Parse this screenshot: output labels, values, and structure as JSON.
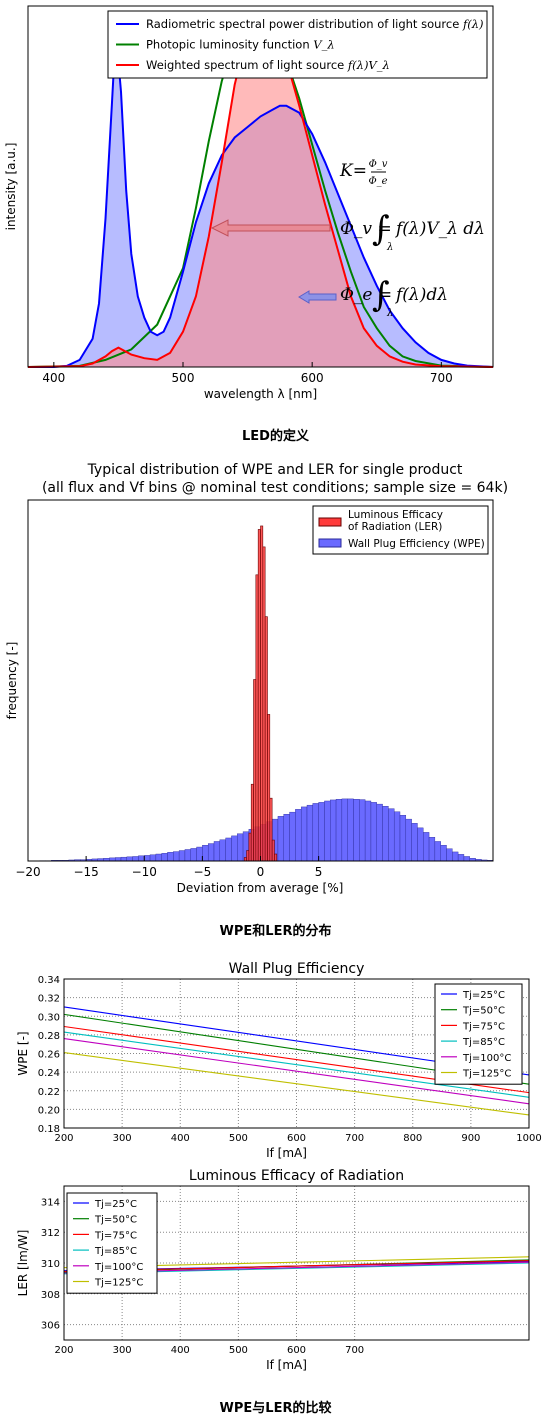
{
  "captions": {
    "fig1": "LED的定义",
    "fig2": "WPE和LER的分布",
    "fig3": "WPE与LER的比较"
  },
  "chart_data": [
    {
      "type": "area",
      "title": "",
      "xlabel": "wavelength λ [nm]",
      "ylabel": "intensity [a.u.]",
      "xlim": [
        380,
        740
      ],
      "ylim": [
        0,
        1.0
      ],
      "xticks": [
        400,
        500,
        600,
        700
      ],
      "legend": "top-right",
      "series": [
        {
          "name": "Radiometric spectral power distribution of light source f(λ)",
          "color": "#0000ff",
          "fill": "#aab0ff",
          "x": [
            380,
            400,
            410,
            420,
            430,
            435,
            440,
            445,
            448,
            452,
            456,
            460,
            465,
            470,
            475,
            480,
            485,
            490,
            500,
            510,
            520,
            530,
            540,
            550,
            560,
            570,
            575,
            580,
            590,
            600,
            610,
            620,
            630,
            640,
            650,
            660,
            670,
            680,
            690,
            700,
            710,
            720,
            740
          ],
          "y": [
            0,
            0,
            0.003,
            0.02,
            0.08,
            0.18,
            0.42,
            0.75,
            0.95,
            0.78,
            0.5,
            0.32,
            0.2,
            0.14,
            0.1,
            0.09,
            0.1,
            0.14,
            0.27,
            0.41,
            0.52,
            0.6,
            0.65,
            0.68,
            0.71,
            0.73,
            0.74,
            0.74,
            0.72,
            0.66,
            0.58,
            0.49,
            0.4,
            0.31,
            0.23,
            0.16,
            0.11,
            0.07,
            0.04,
            0.02,
            0.01,
            0.004,
            0
          ]
        },
        {
          "name": "Photopic luminosity function V_λ",
          "color": "#008000",
          "x": [
            380,
            420,
            440,
            460,
            480,
            500,
            510,
            520,
            530,
            540,
            550,
            555,
            560,
            570,
            580,
            590,
            600,
            610,
            620,
            630,
            640,
            650,
            660,
            670,
            680,
            700,
            740
          ],
          "y": [
            0,
            0.003,
            0.02,
            0.05,
            0.12,
            0.28,
            0.45,
            0.64,
            0.81,
            0.93,
            0.99,
            1.0,
            0.99,
            0.95,
            0.87,
            0.76,
            0.63,
            0.5,
            0.38,
            0.27,
            0.17,
            0.11,
            0.06,
            0.03,
            0.017,
            0.004,
            0
          ]
        },
        {
          "name": "Weighted spectrum of light source f(λ)V_λ",
          "color": "#ff0000",
          "fill": "#ff8c8c",
          "x": [
            380,
            420,
            430,
            440,
            445,
            450,
            455,
            460,
            470,
            480,
            490,
            500,
            510,
            520,
            530,
            540,
            550,
            555,
            560,
            565,
            570,
            580,
            590,
            600,
            610,
            620,
            630,
            640,
            650,
            660,
            670,
            680,
            700,
            740
          ],
          "y": [
            0,
            0.002,
            0.01,
            0.03,
            0.045,
            0.055,
            0.045,
            0.035,
            0.025,
            0.02,
            0.04,
            0.1,
            0.2,
            0.37,
            0.58,
            0.8,
            0.95,
            0.99,
            1.0,
            0.99,
            0.97,
            0.87,
            0.74,
            0.6,
            0.46,
            0.33,
            0.2,
            0.11,
            0.06,
            0.03,
            0.015,
            0.007,
            0.002,
            0
          ]
        }
      ],
      "annotations": {
        "k_lhs": "K",
        "k_num": "Φ_v",
        "k_den": "Φ_e",
        "phi_v_lhs": "Φ_v",
        "phi_v_integrand": "f(λ)V_λ dλ",
        "phi_e_lhs": "Φ_e",
        "phi_e_integrand": "f(λ)dλ",
        "integral_lower": "λ"
      },
      "legend_entries": [
        {
          "prefix": "Radiometric spectral power distribution of light source ",
          "math": "f(λ)"
        },
        {
          "prefix": "Photopic luminosity function ",
          "math": "V_λ"
        },
        {
          "prefix": "Weighted spectrum of light source ",
          "math": "f(λ)V_λ"
        }
      ]
    },
    {
      "type": "bar",
      "title": "Typical distribution of WPE and LER for single product",
      "subtitle": "(all flux and Vf bins @ nominal test conditions; sample size = 64k)",
      "xlabel": "Deviation from average [%]",
      "ylabel": "frequency [-]",
      "xlim": [
        -20,
        20
      ],
      "xticks": [
        -20,
        -15,
        -10,
        -5,
        0,
        5
      ],
      "legend": "top-right",
      "series": [
        {
          "name": "Luminous Efficacy\n of Radiation (LER)",
          "color": "#ff3b3b",
          "bins_start": -1.4,
          "bin_width": 0.2,
          "values": [
            0.01,
            0.03,
            0.08,
            0.22,
            0.52,
            0.82,
            0.95,
            0.96,
            0.9,
            0.7,
            0.42,
            0.18,
            0.06,
            0.02
          ]
        },
        {
          "name": "Wall Plug Efficiency (WPE)",
          "color": "#6a6aff",
          "bins_start": -19,
          "bin_width": 0.5,
          "values": [
            0.001,
            0.001,
            0.002,
            0.002,
            0.002,
            0.003,
            0.004,
            0.004,
            0.005,
            0.006,
            0.007,
            0.008,
            0.009,
            0.01,
            0.011,
            0.012,
            0.013,
            0.015,
            0.016,
            0.018,
            0.02,
            0.022,
            0.025,
            0.027,
            0.03,
            0.033,
            0.036,
            0.04,
            0.045,
            0.05,
            0.056,
            0.061,
            0.066,
            0.072,
            0.078,
            0.084,
            0.091,
            0.098,
            0.105,
            0.113,
            0.12,
            0.128,
            0.134,
            0.14,
            0.148,
            0.155,
            0.16,
            0.165,
            0.168,
            0.172,
            0.175,
            0.177,
            0.178,
            0.178,
            0.177,
            0.176,
            0.172,
            0.168,
            0.163,
            0.157,
            0.15,
            0.141,
            0.131,
            0.12,
            0.108,
            0.095,
            0.082,
            0.068,
            0.056,
            0.045,
            0.035,
            0.026,
            0.019,
            0.013,
            0.008,
            0.005,
            0.003,
            0.002
          ]
        }
      ]
    },
    {
      "type": "line",
      "title": "Wall Plug Efficiency",
      "xlabel": "If [mA]",
      "ylabel": "WPE [-]",
      "xlim": [
        200,
        1000
      ],
      "ylim": [
        0.18,
        0.34
      ],
      "xticks": [
        200,
        300,
        400,
        500,
        600,
        700,
        800,
        900,
        1000
      ],
      "yticks": [
        "0.18",
        "0.20",
        "0.22",
        "0.24",
        "0.26",
        "0.28",
        "0.30",
        "0.32",
        "0.34"
      ],
      "grid": true,
      "legend": "top-right",
      "x": [
        200,
        1000
      ],
      "series": [
        {
          "name": "Tj=25°C",
          "color": "#0000ff",
          "values": [
            0.31,
            0.237
          ]
        },
        {
          "name": "Tj=50°C",
          "color": "#007f00",
          "values": [
            0.302,
            0.227
          ]
        },
        {
          "name": "Tj=75°C",
          "color": "#ff0000",
          "values": [
            0.289,
            0.218
          ]
        },
        {
          "name": "Tj=85°C",
          "color": "#00bfbf",
          "values": [
            0.283,
            0.213
          ]
        },
        {
          "name": "Tj=100°C",
          "color": "#bf00bf",
          "values": [
            0.276,
            0.206
          ]
        },
        {
          "name": "Tj=125°C",
          "color": "#bfbf00",
          "values": [
            0.261,
            0.194
          ]
        }
      ]
    },
    {
      "type": "line",
      "title": "Luminous Efficacy of Radiation",
      "xlabel": "If [mA]",
      "ylabel": "LER [lm/W]",
      "xlim": [
        200,
        1000
      ],
      "ylim": [
        305,
        315
      ],
      "xticks": [
        200,
        300,
        400,
        500,
        600,
        700
      ],
      "yticks": [
        306,
        308,
        310,
        312,
        314
      ],
      "grid": true,
      "legend": "top-left",
      "x": [
        200,
        1000
      ],
      "series": [
        {
          "name": "Tj=25°C",
          "color": "#0000ff",
          "values": [
            309.5,
            310.1
          ]
        },
        {
          "name": "Tj=50°C",
          "color": "#007f00",
          "values": [
            309.4,
            310.2
          ]
        },
        {
          "name": "Tj=75°C",
          "color": "#ff0000",
          "values": [
            309.45,
            310.15
          ]
        },
        {
          "name": "Tj=85°C",
          "color": "#00bfbf",
          "values": [
            309.3,
            310.0
          ]
        },
        {
          "name": "Tj=100°C",
          "color": "#bf00bf",
          "values": [
            309.35,
            310.05
          ]
        },
        {
          "name": "Tj=125°C",
          "color": "#bfbf00",
          "values": [
            309.7,
            310.4
          ]
        }
      ]
    }
  ]
}
